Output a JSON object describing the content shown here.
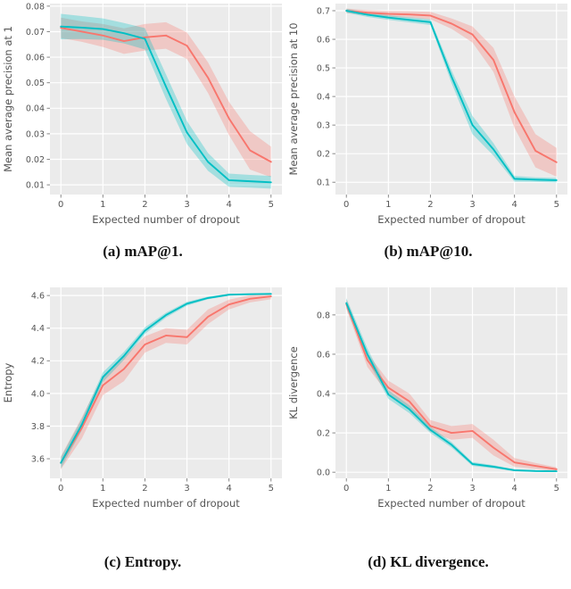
{
  "style": {
    "plot_bg": "#EBEBEB",
    "grid_color": "#FFFFFF",
    "tick_mark_color": "#888888",
    "tick_label_color": "#555555",
    "axis_label_color": "#555555",
    "caption_color": "#111111",
    "band_opacity": 0.3
  },
  "chart_data": [
    {
      "id": "map1",
      "type": "line",
      "caption": "(a) mAP@1.",
      "xlabel": "Expected number of dropout",
      "ylabel": "Mean average precision at 1",
      "grid": true,
      "legend": "none",
      "x": [
        0,
        0.5,
        1,
        1.5,
        2,
        2.5,
        3,
        3.5,
        4,
        4.5,
        5
      ],
      "xticks": [
        0,
        1,
        2,
        3,
        4,
        5
      ],
      "xtick_labels": [
        "0",
        "1",
        "2",
        "3",
        "4",
        "5"
      ],
      "xlim": [
        -0.26,
        5.26
      ],
      "yticks": [
        0.01,
        0.02,
        0.03,
        0.04,
        0.05,
        0.06,
        0.07,
        0.08
      ],
      "ytick_labels": [
        "0.01",
        "0.02",
        "0.03",
        "0.04",
        "0.05",
        "0.06",
        "0.07",
        "0.08"
      ],
      "ylim": [
        0.0062,
        0.081
      ],
      "series": [
        {
          "name": "red",
          "color": "#F8766D",
          "values": [
            0.0715,
            0.07,
            0.0685,
            0.0663,
            0.0678,
            0.0685,
            0.0645,
            0.052,
            0.036,
            0.0235,
            0.019
          ],
          "band": [
            0.004,
            0.004,
            0.0045,
            0.005,
            0.0052,
            0.0052,
            0.0052,
            0.006,
            0.0065,
            0.0075,
            0.006
          ]
        },
        {
          "name": "teal",
          "color": "#00BFC4",
          "values": [
            0.072,
            0.0716,
            0.071,
            0.0694,
            0.0672,
            0.0485,
            0.0305,
            0.019,
            0.0118,
            0.0114,
            0.011
          ],
          "band": [
            0.005,
            0.0045,
            0.0042,
            0.004,
            0.0042,
            0.0048,
            0.0045,
            0.0035,
            0.0026,
            0.0025,
            0.0025
          ]
        }
      ]
    },
    {
      "id": "map10",
      "type": "line",
      "caption": "(b) mAP@10.",
      "xlabel": "Expected number of dropout",
      "ylabel": "Mean average precision at 10",
      "grid": true,
      "legend": "none",
      "x": [
        0,
        0.5,
        1,
        1.5,
        2,
        2.5,
        3,
        3.5,
        4,
        4.5,
        5
      ],
      "xticks": [
        0,
        1,
        2,
        3,
        4,
        5
      ],
      "xtick_labels": [
        "0",
        "1",
        "2",
        "3",
        "4",
        "5"
      ],
      "xlim": [
        -0.26,
        5.26
      ],
      "yticks": [
        0.1,
        0.2,
        0.3,
        0.4,
        0.5,
        0.6,
        0.7
      ],
      "ytick_labels": [
        "0.1",
        "0.2",
        "0.3",
        "0.4",
        "0.5",
        "0.6",
        "0.7"
      ],
      "ylim": [
        0.057,
        0.725
      ],
      "series": [
        {
          "name": "red",
          "color": "#F8766D",
          "values": [
            0.7,
            0.693,
            0.689,
            0.687,
            0.683,
            0.655,
            0.617,
            0.528,
            0.345,
            0.21,
            0.17
          ],
          "band": [
            0.008,
            0.009,
            0.01,
            0.011,
            0.013,
            0.018,
            0.028,
            0.042,
            0.055,
            0.058,
            0.05
          ]
        },
        {
          "name": "teal",
          "color": "#00BFC4",
          "values": [
            0.7,
            0.686,
            0.676,
            0.668,
            0.66,
            0.47,
            0.3,
            0.215,
            0.112,
            0.109,
            0.107
          ],
          "band": [
            0.007,
            0.008,
            0.008,
            0.009,
            0.01,
            0.022,
            0.032,
            0.022,
            0.01,
            0.008,
            0.008
          ]
        }
      ]
    },
    {
      "id": "entropy",
      "type": "line",
      "caption": "(c) Entropy.",
      "xlabel": "Expected number of dropout",
      "ylabel": "Entropy",
      "grid": true,
      "legend": "none",
      "x": [
        0,
        0.5,
        1,
        1.5,
        2,
        2.5,
        3,
        3.5,
        4,
        4.5,
        5
      ],
      "xticks": [
        0,
        1,
        2,
        3,
        4,
        5
      ],
      "xtick_labels": [
        "0",
        "1",
        "2",
        "3",
        "4",
        "5"
      ],
      "xlim": [
        -0.26,
        5.26
      ],
      "yticks": [
        3.6,
        3.8,
        4.0,
        4.2,
        4.4,
        4.6
      ],
      "ytick_labels": [
        "3.6",
        "3.8",
        "4.0",
        "4.2",
        "4.4",
        "4.6"
      ],
      "ylim": [
        3.48,
        4.65
      ],
      "series": [
        {
          "name": "red",
          "color": "#F8766D",
          "values": [
            3.575,
            3.79,
            4.05,
            4.15,
            4.3,
            4.355,
            4.345,
            4.47,
            4.545,
            4.58,
            4.595
          ],
          "band": [
            0.04,
            0.065,
            0.06,
            0.075,
            0.05,
            0.045,
            0.045,
            0.045,
            0.03,
            0.022,
            0.018
          ]
        },
        {
          "name": "teal",
          "color": "#00BFC4",
          "values": [
            3.575,
            3.81,
            4.1,
            4.23,
            4.385,
            4.48,
            4.55,
            4.585,
            4.605,
            4.608,
            4.61
          ],
          "band": [
            0.035,
            0.035,
            0.03,
            0.025,
            0.02,
            0.015,
            0.012,
            0.008,
            0.006,
            0.005,
            0.005
          ]
        }
      ]
    },
    {
      "id": "kl-divergence",
      "type": "line",
      "caption": "(d) KL divergence.",
      "xlabel": "Expected number of dropout",
      "ylabel": "KL divergence",
      "grid": true,
      "legend": "none",
      "x": [
        0,
        0.5,
        1,
        1.5,
        2,
        2.5,
        3,
        3.5,
        4,
        4.5,
        5
      ],
      "xticks": [
        0,
        1,
        2,
        3,
        4,
        5
      ],
      "xtick_labels": [
        "0",
        "1",
        "2",
        "3",
        "4",
        "5"
      ],
      "xlim": [
        -0.26,
        5.26
      ],
      "yticks": [
        0.0,
        0.2,
        0.4,
        0.6,
        0.8
      ],
      "ytick_labels": [
        "0.0",
        "0.2",
        "0.4",
        "0.6",
        "0.8"
      ],
      "ylim": [
        -0.031,
        0.94
      ],
      "series": [
        {
          "name": "red",
          "color": "#F8766D",
          "values": [
            0.855,
            0.57,
            0.43,
            0.36,
            0.235,
            0.2,
            0.21,
            0.125,
            0.05,
            0.032,
            0.015
          ],
          "band": [
            0.025,
            0.035,
            0.035,
            0.04,
            0.03,
            0.035,
            0.035,
            0.04,
            0.022,
            0.015,
            0.01
          ]
        },
        {
          "name": "teal",
          "color": "#00BFC4",
          "values": [
            0.86,
            0.6,
            0.395,
            0.32,
            0.215,
            0.14,
            0.042,
            0.028,
            0.01,
            0.006,
            0.005
          ],
          "band": [
            0.025,
            0.03,
            0.022,
            0.02,
            0.016,
            0.014,
            0.01,
            0.008,
            0.005,
            0.004,
            0.004
          ]
        }
      ]
    }
  ]
}
